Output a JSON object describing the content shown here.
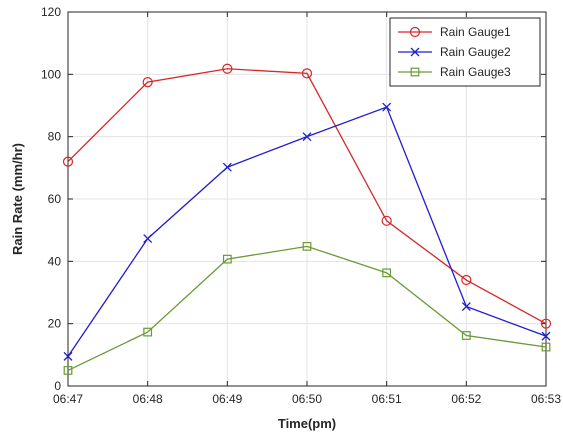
{
  "chart_data": {
    "type": "line",
    "categories": [
      "06:47",
      "06:48",
      "06:49",
      "06:50",
      "06:51",
      "06:52",
      "06:53"
    ],
    "xlabel": "Time(pm)",
    "ylabel": "Rain Rate (mm/hr)",
    "ylim": [
      0,
      120
    ],
    "yticks": [
      0,
      20,
      40,
      60,
      80,
      100,
      120
    ],
    "grid": true,
    "legend_position": "top-right",
    "series": [
      {
        "name": "Rain Gauge1",
        "color": "#d62728",
        "marker": "circle",
        "values": [
          72,
          97.5,
          101.8,
          100.3,
          53,
          34,
          20
        ]
      },
      {
        "name": "Rain Gauge2",
        "color": "#1f1fd0",
        "marker": "x",
        "values": [
          9.5,
          47.3,
          70.2,
          80,
          89.5,
          25.5,
          16
        ]
      },
      {
        "name": "Rain Gauge3",
        "color": "#6a9a35",
        "marker": "square",
        "values": [
          5,
          17.3,
          40.7,
          44.8,
          36.3,
          16.2,
          12.5
        ]
      }
    ]
  }
}
